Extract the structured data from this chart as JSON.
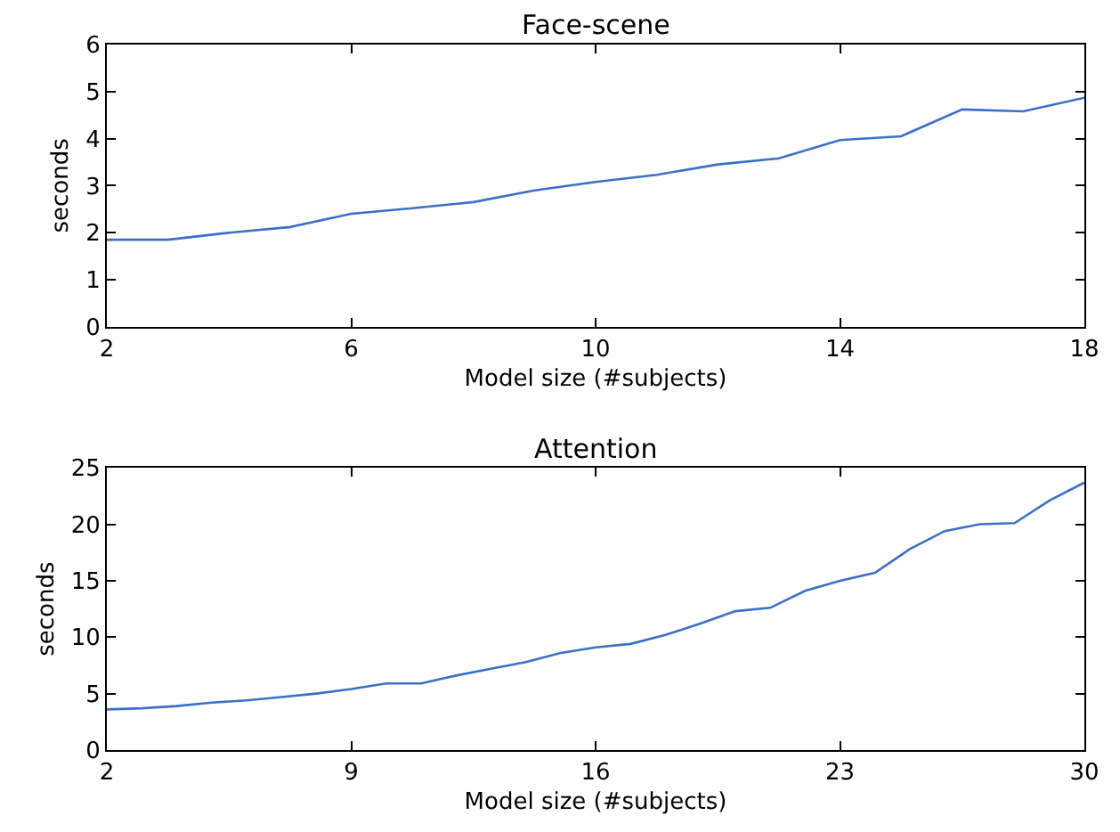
{
  "chart_data": [
    {
      "type": "line",
      "title": "Face-scene",
      "xlabel": "Model size (#subjects)",
      "ylabel": "seconds",
      "x": [
        2,
        3,
        4,
        5,
        6,
        7,
        8,
        9,
        10,
        11,
        12,
        13,
        14,
        15,
        16,
        17,
        18
      ],
      "series": [
        {
          "color": "#3b70c8",
          "values": [
            1.85,
            1.85,
            2.0,
            2.12,
            2.4,
            2.52,
            2.65,
            2.9,
            3.08,
            3.23,
            3.45,
            3.58,
            3.97,
            4.05,
            4.62,
            4.58,
            4.87
          ]
        }
      ],
      "xlim": [
        2,
        18
      ],
      "xticks": [
        2,
        6,
        10,
        14,
        18
      ],
      "ylim": [
        0,
        6
      ],
      "yticks": [
        0,
        1,
        2,
        3,
        4,
        5,
        6
      ]
    },
    {
      "type": "line",
      "title": "Attention",
      "xlabel": "Model size (#subjects)",
      "ylabel": "seconds",
      "x": [
        2,
        3,
        4,
        5,
        6,
        7,
        8,
        9,
        10,
        11,
        12,
        13,
        14,
        15,
        16,
        17,
        18,
        19,
        20,
        21,
        22,
        23,
        24,
        25,
        26,
        27,
        28,
        29,
        30
      ],
      "series": [
        {
          "color": "#3b70c8",
          "values": [
            3.6,
            3.7,
            3.9,
            4.2,
            4.4,
            4.7,
            5.0,
            5.4,
            5.9,
            5.9,
            6.6,
            7.2,
            7.8,
            8.6,
            9.1,
            9.4,
            10.2,
            11.2,
            12.3,
            12.6,
            14.1,
            15.0,
            15.7,
            17.8,
            19.4,
            20.0,
            20.1,
            22.1,
            23.7
          ]
        }
      ],
      "xlim": [
        2,
        30
      ],
      "xticks": [
        2,
        9,
        16,
        23,
        30
      ],
      "ylim": [
        0,
        25
      ],
      "yticks": [
        0,
        5,
        10,
        15,
        20,
        25
      ]
    }
  ]
}
